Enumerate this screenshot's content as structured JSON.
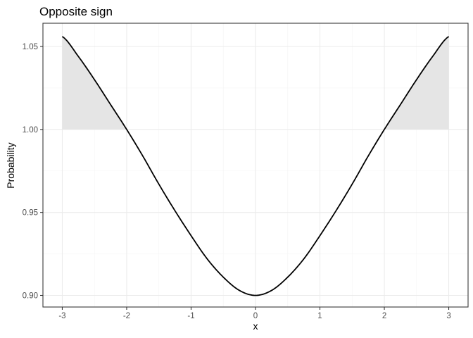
{
  "chart_data": {
    "type": "line",
    "title": "Opposite sign",
    "xlabel": "x",
    "ylabel": "Probability",
    "xlim": [
      -3.3,
      3.3
    ],
    "ylim": [
      0.893,
      1.064
    ],
    "x_ticks": [
      -3,
      -2,
      -1,
      0,
      1,
      2,
      3
    ],
    "x_tick_labels": [
      "-3",
      "-2",
      "-1",
      "0",
      "1",
      "2",
      "3"
    ],
    "y_ticks": [
      0.9,
      0.95,
      1.0,
      1.05
    ],
    "y_tick_labels": [
      "0.90",
      "0.95",
      "1.00",
      "1.05"
    ],
    "grid": true,
    "series": [
      {
        "x": [
          -3.0,
          -2.75,
          -2.5,
          -2.25,
          -2.0,
          -1.75,
          -1.5,
          -1.25,
          -1.0,
          -0.75,
          -0.5,
          -0.25,
          0.0,
          0.25,
          0.5,
          0.75,
          1.0,
          1.25,
          1.5,
          1.75,
          2.0,
          2.25,
          2.5,
          2.75,
          3.0
        ],
        "values": [
          1.056,
          1.044,
          1.03,
          1.015,
          1.0,
          0.984,
          0.967,
          0.951,
          0.936,
          0.922,
          0.911,
          0.903,
          0.9,
          0.903,
          0.911,
          0.922,
          0.936,
          0.951,
          0.967,
          0.984,
          1.0,
          1.015,
          1.03,
          1.044,
          1.056
        ],
        "color": "#000000"
      }
    ],
    "shaded_regions": [
      {
        "x_from": -3.0,
        "x_to": -2.0,
        "baseline": 1.0,
        "fill": "#e5e5e5"
      },
      {
        "x_from": 2.0,
        "x_to": 3.0,
        "baseline": 1.0,
        "fill": "#e5e5e5"
      }
    ]
  }
}
